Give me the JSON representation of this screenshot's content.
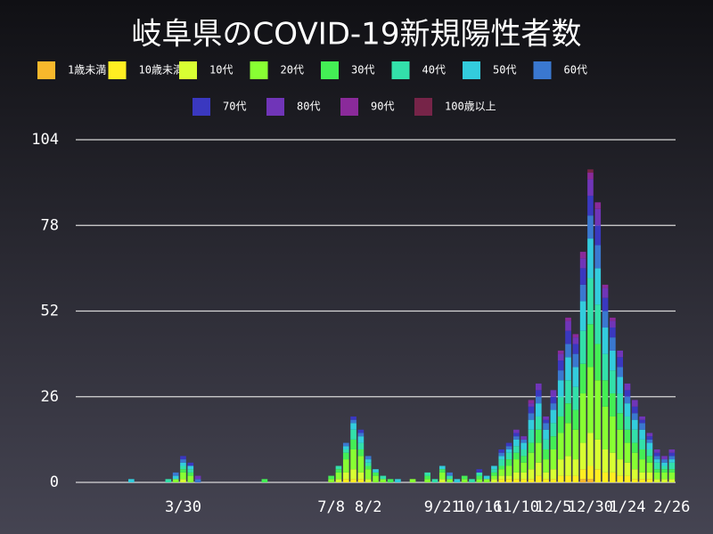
{
  "chart_data": {
    "type": "stacked_bar",
    "title": "岐阜県のCOVID-19新規陽性者数",
    "categories": [
      null,
      null,
      null,
      null,
      null,
      null,
      null,
      null,
      null,
      null,
      null,
      null,
      null,
      null,
      "3/30",
      null,
      null,
      null,
      null,
      null,
      null,
      null,
      null,
      null,
      null,
      null,
      null,
      null,
      null,
      null,
      null,
      null,
      null,
      null,
      "7/8",
      null,
      null,
      null,
      null,
      "8/2",
      null,
      null,
      null,
      null,
      null,
      null,
      null,
      null,
      null,
      "9/21",
      null,
      null,
      null,
      null,
      "10/16",
      null,
      null,
      null,
      null,
      "11/10",
      null,
      null,
      null,
      null,
      "12/5",
      null,
      null,
      null,
      null,
      "12/30",
      null,
      null,
      null,
      null,
      "1/24",
      null,
      null,
      null,
      null,
      null,
      "2/26"
    ],
    "ylim": [
      0,
      104
    ],
    "yticks": [
      0,
      26,
      52,
      78,
      104
    ],
    "grid": true,
    "series": [
      {
        "name": "1歳未満",
        "color": "#f7b82c",
        "values": [
          0,
          0,
          0,
          0,
          0,
          0,
          0,
          0,
          0,
          0,
          0,
          0,
          0,
          0,
          0,
          0,
          0,
          0,
          0,
          0,
          0,
          0,
          0,
          0,
          0,
          0,
          0,
          0,
          0,
          0,
          0,
          0,
          0,
          0,
          0,
          0,
          0,
          0,
          0,
          0,
          0,
          0,
          0,
          0,
          0,
          0,
          0,
          0,
          0,
          0,
          0,
          0,
          0,
          0,
          0,
          0,
          0,
          0,
          0,
          0,
          0,
          0,
          0,
          0,
          0,
          0,
          0,
          0,
          1,
          1,
          0,
          0,
          0,
          0,
          0,
          0,
          0,
          0,
          0,
          0,
          0
        ]
      },
      {
        "name": "10歳未満",
        "color": "#ffee22",
        "values": [
          0,
          0,
          0,
          0,
          0,
          0,
          0,
          0,
          0,
          0,
          0,
          0,
          0,
          0,
          0,
          0,
          0,
          0,
          0,
          0,
          0,
          0,
          0,
          0,
          0,
          0,
          0,
          0,
          0,
          0,
          0,
          0,
          0,
          0,
          0,
          0,
          1,
          1,
          1,
          0,
          0,
          0,
          0,
          0,
          0,
          0,
          0,
          0,
          0,
          0,
          0,
          0,
          0,
          0,
          0,
          0,
          0,
          1,
          1,
          1,
          1,
          1,
          2,
          1,
          1,
          2,
          2,
          2,
          3,
          4,
          4,
          3,
          3,
          2,
          2,
          1,
          1,
          1,
          0,
          0,
          0
        ]
      },
      {
        "name": "10代",
        "color": "#d8ff33",
        "values": [
          0,
          0,
          0,
          0,
          0,
          0,
          0,
          0,
          0,
          0,
          0,
          0,
          0,
          0,
          1,
          0,
          0,
          0,
          0,
          0,
          0,
          0,
          0,
          0,
          0,
          0,
          0,
          0,
          0,
          0,
          0,
          0,
          0,
          0,
          0,
          1,
          2,
          3,
          2,
          1,
          0,
          0,
          0,
          0,
          0,
          0,
          0,
          0,
          0,
          1,
          0,
          0,
          0,
          0,
          0,
          0,
          1,
          1,
          1,
          2,
          2,
          3,
          4,
          2,
          3,
          5,
          6,
          5,
          8,
          10,
          9,
          7,
          6,
          5,
          4,
          3,
          2,
          2,
          1,
          1,
          1
        ]
      },
      {
        "name": "20代",
        "color": "#88ff33",
        "values": [
          0,
          0,
          0,
          0,
          0,
          0,
          0,
          0,
          0,
          0,
          0,
          0,
          0,
          1,
          2,
          2,
          0,
          0,
          0,
          0,
          0,
          0,
          0,
          0,
          0,
          0,
          0,
          0,
          0,
          0,
          0,
          0,
          0,
          0,
          1,
          2,
          4,
          6,
          5,
          3,
          2,
          1,
          0,
          0,
          0,
          1,
          0,
          1,
          0,
          2,
          1,
          0,
          1,
          0,
          1,
          1,
          1,
          2,
          3,
          4,
          3,
          5,
          6,
          4,
          6,
          8,
          10,
          9,
          15,
          20,
          18,
          13,
          11,
          9,
          6,
          5,
          4,
          3,
          2,
          2,
          2
        ]
      },
      {
        "name": "30代",
        "color": "#44ee55",
        "values": [
          0,
          0,
          0,
          0,
          0,
          0,
          0,
          0,
          0,
          0,
          0,
          0,
          0,
          0,
          1,
          1,
          0,
          0,
          0,
          0,
          0,
          0,
          0,
          0,
          0,
          1,
          0,
          0,
          0,
          0,
          0,
          0,
          0,
          0,
          1,
          1,
          2,
          3,
          2,
          1,
          1,
          0,
          1,
          0,
          0,
          0,
          0,
          1,
          0,
          1,
          0,
          0,
          1,
          0,
          1,
          0,
          1,
          1,
          2,
          2,
          2,
          3,
          4,
          3,
          4,
          5,
          6,
          6,
          9,
          13,
          11,
          8,
          7,
          5,
          4,
          3,
          3,
          2,
          1,
          1,
          1
        ]
      },
      {
        "name": "40代",
        "color": "#33e0aa",
        "values": [
          0,
          0,
          0,
          0,
          0,
          0,
          0,
          0,
          0,
          0,
          0,
          0,
          1,
          0,
          1,
          1,
          0,
          0,
          0,
          0,
          0,
          0,
          0,
          0,
          0,
          0,
          0,
          0,
          0,
          0,
          0,
          0,
          0,
          0,
          0,
          1,
          1,
          3,
          2,
          1,
          0,
          1,
          0,
          0,
          0,
          0,
          0,
          1,
          1,
          0,
          1,
          0,
          0,
          1,
          1,
          0,
          1,
          2,
          2,
          2,
          2,
          4,
          4,
          3,
          4,
          6,
          7,
          7,
          10,
          14,
          12,
          8,
          7,
          6,
          4,
          4,
          3,
          2,
          2,
          1,
          2
        ]
      },
      {
        "name": "50代",
        "color": "#33ccdd",
        "values": [
          0,
          0,
          0,
          0,
          0,
          0,
          0,
          1,
          0,
          0,
          0,
          0,
          0,
          1,
          1,
          1,
          0,
          0,
          0,
          0,
          0,
          0,
          0,
          0,
          0,
          0,
          0,
          0,
          0,
          0,
          0,
          0,
          0,
          0,
          0,
          0,
          1,
          2,
          2,
          1,
          1,
          0,
          0,
          1,
          0,
          0,
          0,
          0,
          0,
          1,
          0,
          1,
          0,
          0,
          0,
          1,
          1,
          1,
          1,
          2,
          2,
          3,
          4,
          3,
          4,
          5,
          7,
          6,
          9,
          12,
          11,
          8,
          6,
          5,
          4,
          3,
          3,
          2,
          1,
          1,
          1
        ]
      },
      {
        "name": "60代",
        "color": "#3a78d0",
        "values": [
          0,
          0,
          0,
          0,
          0,
          0,
          0,
          0,
          0,
          0,
          0,
          0,
          0,
          1,
          1,
          0,
          1,
          0,
          0,
          0,
          0,
          0,
          0,
          0,
          0,
          0,
          0,
          0,
          0,
          0,
          0,
          0,
          0,
          0,
          0,
          0,
          1,
          1,
          1,
          1,
          0,
          0,
          0,
          0,
          0,
          0,
          0,
          0,
          0,
          0,
          1,
          0,
          0,
          0,
          0,
          0,
          0,
          1,
          1,
          1,
          1,
          2,
          2,
          2,
          2,
          3,
          4,
          4,
          5,
          7,
          7,
          5,
          4,
          3,
          2,
          2,
          2,
          1,
          1,
          1,
          1
        ]
      },
      {
        "name": "70代",
        "color": "#3a38c0",
        "values": [
          0,
          0,
          0,
          0,
          0,
          0,
          0,
          0,
          0,
          0,
          0,
          0,
          0,
          0,
          1,
          1,
          0,
          0,
          0,
          0,
          0,
          0,
          0,
          0,
          0,
          0,
          0,
          0,
          0,
          0,
          0,
          0,
          0,
          0,
          0,
          0,
          0,
          1,
          1,
          0,
          0,
          0,
          0,
          0,
          0,
          0,
          0,
          0,
          0,
          0,
          0,
          0,
          0,
          0,
          1,
          0,
          0,
          1,
          1,
          1,
          0,
          2,
          2,
          1,
          2,
          3,
          4,
          3,
          5,
          6,
          6,
          4,
          3,
          3,
          2,
          2,
          1,
          1,
          1,
          0,
          1
        ]
      },
      {
        "name": "80代",
        "color": "#7035b8",
        "values": [
          0,
          0,
          0,
          0,
          0,
          0,
          0,
          0,
          0,
          0,
          0,
          0,
          0,
          0,
          0,
          0,
          1,
          0,
          0,
          0,
          0,
          0,
          0,
          0,
          0,
          0,
          0,
          0,
          0,
          0,
          0,
          0,
          0,
          0,
          0,
          0,
          0,
          0,
          0,
          0,
          0,
          0,
          0,
          0,
          0,
          0,
          0,
          0,
          0,
          0,
          0,
          0,
          0,
          0,
          0,
          0,
          0,
          0,
          0,
          1,
          1,
          1,
          2,
          1,
          2,
          2,
          3,
          2,
          3,
          5,
          5,
          3,
          2,
          2,
          2,
          2,
          1,
          1,
          1,
          1,
          1
        ]
      },
      {
        "name": "90代",
        "color": "#8a2a9a",
        "values": [
          0,
          0,
          0,
          0,
          0,
          0,
          0,
          0,
          0,
          0,
          0,
          0,
          0,
          0,
          0,
          0,
          0,
          0,
          0,
          0,
          0,
          0,
          0,
          0,
          0,
          0,
          0,
          0,
          0,
          0,
          0,
          0,
          0,
          0,
          0,
          0,
          0,
          0,
          0,
          0,
          0,
          0,
          0,
          0,
          0,
          0,
          0,
          0,
          0,
          0,
          0,
          0,
          0,
          0,
          0,
          0,
          0,
          0,
          0,
          0,
          0,
          1,
          0,
          0,
          0,
          1,
          1,
          1,
          2,
          2,
          2,
          1,
          1,
          0,
          0,
          0,
          0,
          0,
          0,
          0,
          0
        ]
      },
      {
        "name": "100歳以上",
        "color": "#762448",
        "values": [
          0,
          0,
          0,
          0,
          0,
          0,
          0,
          0,
          0,
          0,
          0,
          0,
          0,
          0,
          0,
          0,
          0,
          0,
          0,
          0,
          0,
          0,
          0,
          0,
          0,
          0,
          0,
          0,
          0,
          0,
          0,
          0,
          0,
          0,
          0,
          0,
          0,
          0,
          0,
          0,
          0,
          0,
          0,
          0,
          0,
          0,
          0,
          0,
          0,
          0,
          0,
          0,
          0,
          0,
          0,
          0,
          0,
          0,
          0,
          0,
          0,
          0,
          0,
          0,
          0,
          0,
          0,
          0,
          0,
          1,
          0,
          0,
          0,
          0,
          0,
          0,
          0,
          0,
          0,
          0,
          0
        ]
      }
    ]
  }
}
